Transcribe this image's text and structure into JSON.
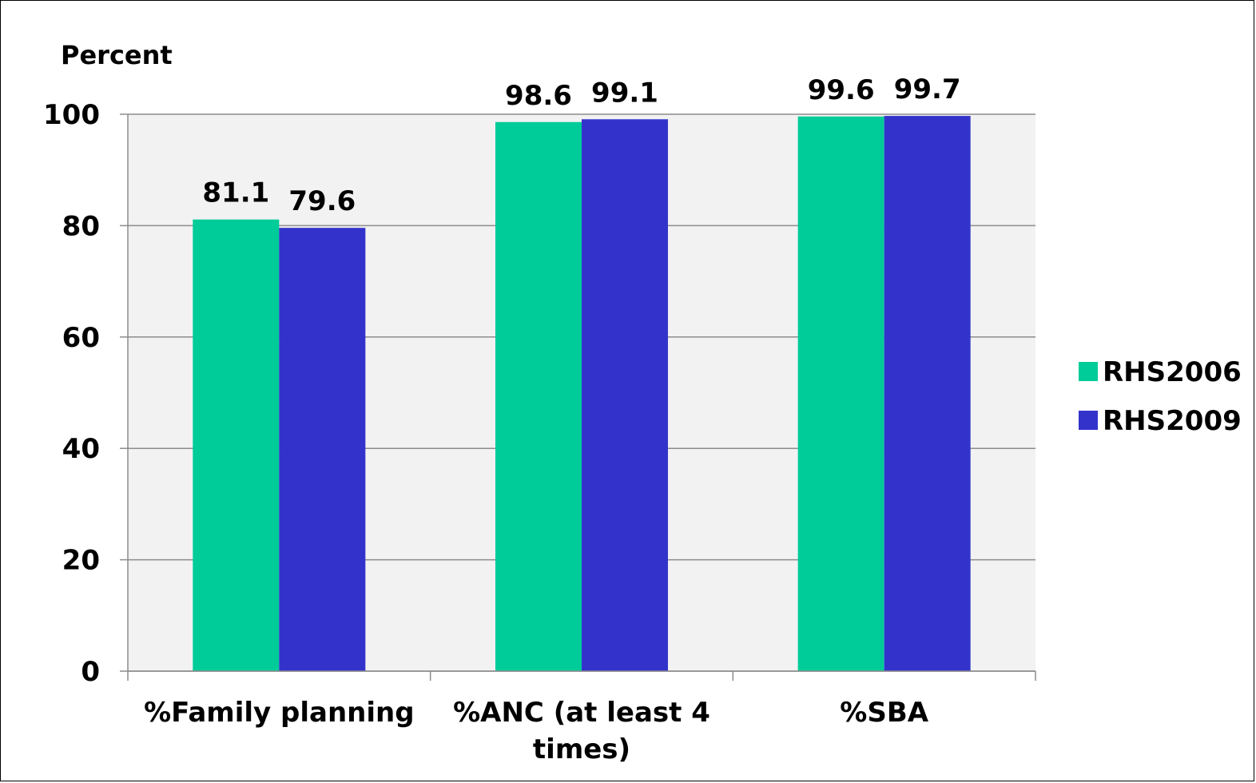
{
  "chart_data": {
    "type": "bar",
    "ylabel": "Percent",
    "categories": [
      "%Family planning",
      "%ANC (at least 4 times)",
      "%SBA"
    ],
    "category_lines": [
      [
        "%Family planning"
      ],
      [
        "%ANC (at least 4",
        "times)"
      ],
      [
        "%SBA"
      ]
    ],
    "series": [
      {
        "name": "RHS2006",
        "values": [
          81.1,
          98.6,
          99.6
        ],
        "color": "#00cc99"
      },
      {
        "name": "RHS2009",
        "values": [
          79.6,
          99.1,
          99.7
        ],
        "color": "#3333cc"
      }
    ],
    "data_labels": [
      [
        "81.1",
        "98.6",
        "99.6"
      ],
      [
        "79.6",
        "99.1",
        "99.7"
      ]
    ],
    "y_ticks": [
      "0",
      "20",
      "40",
      "60",
      "80",
      "100"
    ],
    "ylim": [
      0,
      100
    ],
    "grid": true,
    "plot_background": "#f2f2f2",
    "legend_position": "right"
  }
}
